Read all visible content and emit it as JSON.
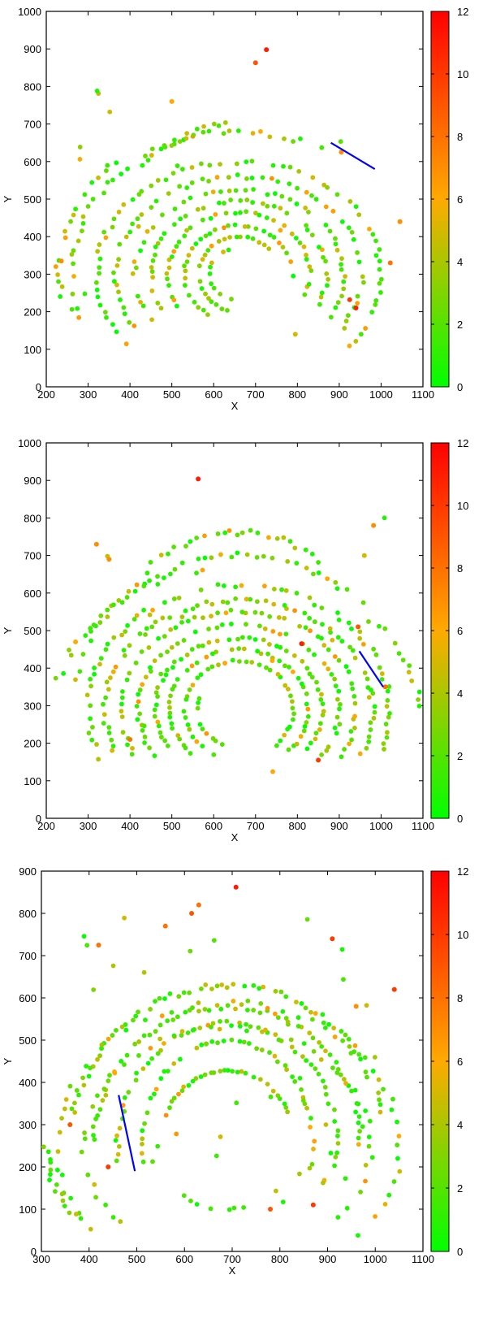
{
  "colorbar": {
    "min": 0,
    "max": 12,
    "ticks": [
      "0",
      "2",
      "4",
      "6",
      "8",
      "10",
      "12"
    ],
    "colormap": [
      "#00ff00",
      "#ffaa00",
      "#ff0000"
    ]
  },
  "line_color": "#0000ff",
  "chart_data": [
    {
      "type": "scatter",
      "xlabel": "X",
      "ylabel": "Y",
      "xlim": [
        200,
        1100
      ],
      "ylim": [
        0,
        1000
      ],
      "xticks": [
        "200",
        "300",
        "400",
        "500",
        "600",
        "700",
        "800",
        "900",
        "1000",
        "1100"
      ],
      "yticks": [
        "0",
        "100",
        "200",
        "300",
        "400",
        "500",
        "600",
        "700",
        "800",
        "900",
        "1000"
      ],
      "arcs": [
        {
          "cx": 660,
          "cy": 300,
          "rx": 340,
          "ry": 300,
          "a0": -40,
          "a1": 220,
          "n": 70
        },
        {
          "cx": 660,
          "cy": 300,
          "rx": 295,
          "ry": 260,
          "a0": -35,
          "a1": 215,
          "n": 60
        },
        {
          "cx": 660,
          "cy": 300,
          "rx": 250,
          "ry": 225,
          "a0": -30,
          "a1": 215,
          "n": 55
        },
        {
          "cx": 660,
          "cy": 300,
          "rx": 210,
          "ry": 195,
          "a0": -25,
          "a1": 210,
          "n": 50
        },
        {
          "cx": 660,
          "cy": 300,
          "rx": 170,
          "ry": 165,
          "a0": -20,
          "a1": 220,
          "n": 45
        },
        {
          "cx": 660,
          "cy": 300,
          "rx": 130,
          "ry": 130,
          "a0": -10,
          "a1": 240,
          "n": 35
        },
        {
          "cx": 660,
          "cy": 300,
          "rx": 95,
          "ry": 100,
          "a0": 40,
          "a1": 260,
          "n": 25
        },
        {
          "cx": 660,
          "cy": 300,
          "rx": 70,
          "ry": 70,
          "a0": 110,
          "a1": 260,
          "n": 14
        },
        {
          "cx": 660,
          "cy": 300,
          "rx": 400,
          "ry": 380,
          "a0": 60,
          "a1": 200,
          "n": 40
        },
        {
          "cx": 660,
          "cy": 300,
          "rx": 430,
          "ry": 420,
          "a0": 130,
          "a1": 190,
          "n": 22
        },
        {
          "cx": 660,
          "cy": 300,
          "rx": 330,
          "ry": 400,
          "a0": 95,
          "a1": 135,
          "n": 18
        }
      ],
      "scatter": 12,
      "hot_points": [
        {
          "x": 726,
          "y": 898,
          "v": 11
        },
        {
          "x": 700,
          "y": 863,
          "v": 9
        },
        {
          "x": 940,
          "y": 210,
          "v": 11
        },
        {
          "x": 925,
          "y": 232,
          "v": 10
        },
        {
          "x": 905,
          "y": 625,
          "v": 7
        },
        {
          "x": 1022,
          "y": 330,
          "v": 8
        },
        {
          "x": 236,
          "y": 335,
          "v": 7
        },
        {
          "x": 1045,
          "y": 440,
          "v": 7
        },
        {
          "x": 500,
          "y": 760,
          "v": 6
        },
        {
          "x": 795,
          "y": 140,
          "v": 5
        }
      ],
      "line": [
        [
          880,
          650
        ],
        [
          985,
          580
        ]
      ]
    },
    {
      "type": "scatter",
      "xlabel": "X",
      "ylabel": "Y",
      "xlim": [
        200,
        1100
      ],
      "ylim": [
        0,
        1000
      ],
      "xticks": [
        "200",
        "300",
        "400",
        "500",
        "600",
        "700",
        "800",
        "900",
        "1000",
        "1100"
      ],
      "yticks": [
        "0",
        "100",
        "200",
        "300",
        "400",
        "500",
        "600",
        "700",
        "800",
        "900",
        "1000"
      ],
      "arcs": [
        {
          "cx": 660,
          "cy": 290,
          "rx": 360,
          "ry": 330,
          "a0": -20,
          "a1": 205,
          "n": 75
        },
        {
          "cx": 660,
          "cy": 290,
          "rx": 320,
          "ry": 290,
          "a0": -25,
          "a1": 205,
          "n": 70
        },
        {
          "cx": 660,
          "cy": 290,
          "rx": 280,
          "ry": 260,
          "a0": -30,
          "a1": 210,
          "n": 65
        },
        {
          "cx": 660,
          "cy": 290,
          "rx": 240,
          "ry": 225,
          "a0": -35,
          "a1": 215,
          "n": 60
        },
        {
          "cx": 660,
          "cy": 290,
          "rx": 200,
          "ry": 190,
          "a0": -35,
          "a1": 220,
          "n": 55
        },
        {
          "cx": 660,
          "cy": 290,
          "rx": 165,
          "ry": 160,
          "a0": -40,
          "a1": 230,
          "n": 50
        },
        {
          "cx": 660,
          "cy": 290,
          "rx": 130,
          "ry": 130,
          "a0": -50,
          "a1": 240,
          "n": 40
        },
        {
          "cx": 660,
          "cy": 290,
          "rx": 100,
          "ry": 100,
          "a0": 160,
          "a1": 260,
          "n": 12
        },
        {
          "cx": 660,
          "cy": 290,
          "rx": 400,
          "ry": 410,
          "a0": 40,
          "a1": 170,
          "n": 45
        },
        {
          "cx": 660,
          "cy": 290,
          "rx": 360,
          "ry": 470,
          "a0": 55,
          "a1": 130,
          "n": 30
        },
        {
          "cx": 660,
          "cy": 290,
          "rx": 440,
          "ry": 380,
          "a0": 100,
          "a1": 170,
          "n": 22
        },
        {
          "cx": 660,
          "cy": 290,
          "rx": 430,
          "ry": 350,
          "a0": 0,
          "a1": 45,
          "n": 15
        }
      ],
      "scatter": 12,
      "hot_points": [
        {
          "x": 563,
          "y": 904,
          "v": 11
        },
        {
          "x": 810,
          "y": 465,
          "v": 11
        },
        {
          "x": 850,
          "y": 155,
          "v": 10
        },
        {
          "x": 982,
          "y": 780,
          "v": 7
        },
        {
          "x": 320,
          "y": 730,
          "v": 7
        },
        {
          "x": 350,
          "y": 690,
          "v": 7
        },
        {
          "x": 400,
          "y": 210,
          "v": 8
        },
        {
          "x": 945,
          "y": 510,
          "v": 9
        },
        {
          "x": 270,
          "y": 470,
          "v": 6
        },
        {
          "x": 1010,
          "y": 350,
          "v": 8
        },
        {
          "x": 740,
          "y": 420,
          "v": 6
        },
        {
          "x": 960,
          "y": 700,
          "v": 5
        }
      ],
      "line": [
        [
          948,
          445
        ],
        [
          1005,
          350
        ]
      ]
    },
    {
      "type": "scatter",
      "xlabel": "X",
      "ylabel": "Y",
      "xlim": [
        300,
        1100
      ],
      "ylim": [
        0,
        900
      ],
      "xticks": [
        "300",
        "400",
        "500",
        "600",
        "700",
        "800",
        "900",
        "1000",
        "1100"
      ],
      "yticks": [
        "0",
        "100",
        "200",
        "300",
        "400",
        "500",
        "600",
        "700",
        "800",
        "900"
      ],
      "arcs": [
        {
          "cx": 690,
          "cy": 250,
          "rx": 330,
          "ry": 380,
          "a0": 10,
          "a1": 170,
          "n": 75
        },
        {
          "cx": 690,
          "cy": 250,
          "rx": 280,
          "ry": 330,
          "a0": 0,
          "a1": 180,
          "n": 65
        },
        {
          "cx": 690,
          "cy": 250,
          "rx": 230,
          "ry": 290,
          "a0": -10,
          "a1": 190,
          "n": 60
        },
        {
          "cx": 690,
          "cy": 250,
          "rx": 180,
          "ry": 250,
          "a0": -15,
          "a1": 195,
          "n": 50
        },
        {
          "cx": 690,
          "cy": 250,
          "rx": 140,
          "ry": 180,
          "a0": 20,
          "a1": 160,
          "n": 35
        },
        {
          "cx": 690,
          "cy": 250,
          "rx": 360,
          "ry": 340,
          "a0": -40,
          "a1": 220,
          "n": 55
        },
        {
          "cx": 690,
          "cy": 250,
          "rx": 300,
          "ry": 280,
          "a0": -45,
          "a1": 225,
          "n": 50
        },
        {
          "cx": 690,
          "cy": 250,
          "rx": 150,
          "ry": 150,
          "a0": 230,
          "a1": 290,
          "n": 8
        },
        {
          "cx": 690,
          "cy": 250,
          "rx": 380,
          "ry": 300,
          "a0": 180,
          "a1": 215,
          "n": 14
        }
      ],
      "scatter": 35,
      "hot_points": [
        {
          "x": 708,
          "y": 862,
          "v": 11
        },
        {
          "x": 910,
          "y": 740,
          "v": 10
        },
        {
          "x": 1040,
          "y": 620,
          "v": 10
        },
        {
          "x": 615,
          "y": 800,
          "v": 9
        },
        {
          "x": 630,
          "y": 820,
          "v": 8
        },
        {
          "x": 360,
          "y": 300,
          "v": 9
        },
        {
          "x": 440,
          "y": 200,
          "v": 10
        },
        {
          "x": 870,
          "y": 110,
          "v": 10
        },
        {
          "x": 780,
          "y": 100,
          "v": 9
        },
        {
          "x": 560,
          "y": 770,
          "v": 8
        },
        {
          "x": 420,
          "y": 725,
          "v": 8
        },
        {
          "x": 960,
          "y": 580,
          "v": 7
        }
      ],
      "line": [
        [
          462,
          370
        ],
        [
          496,
          190
        ]
      ]
    }
  ]
}
